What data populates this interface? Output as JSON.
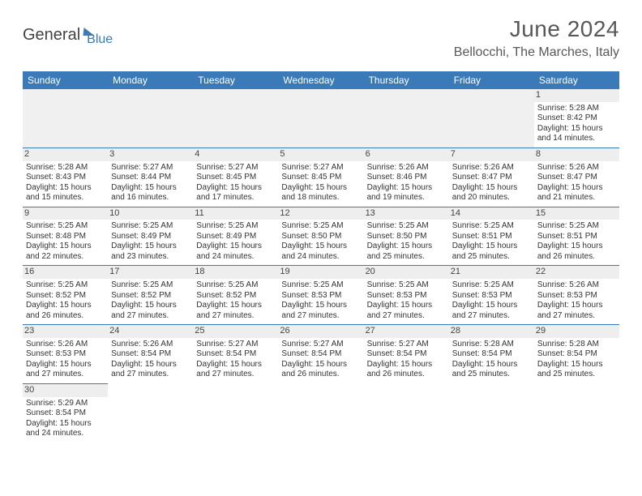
{
  "logo": {
    "part1": "General",
    "part2": "Blue"
  },
  "title": "June 2024",
  "location": "Bellocchi, The Marches, Italy",
  "colors": {
    "header_bg": "#3a7ab8",
    "header_text": "#ffffff",
    "border": "#3a7ab8",
    "title_color": "#585858",
    "daynum_bg": "#eeeeee"
  },
  "day_headers": [
    "Sunday",
    "Monday",
    "Tuesday",
    "Wednesday",
    "Thursday",
    "Friday",
    "Saturday"
  ],
  "weeks": [
    [
      null,
      null,
      null,
      null,
      null,
      null,
      {
        "n": "1",
        "sunrise": "5:28 AM",
        "sunset": "8:42 PM",
        "daylight": "15 hours and 14 minutes."
      }
    ],
    [
      {
        "n": "2",
        "sunrise": "5:28 AM",
        "sunset": "8:43 PM",
        "daylight": "15 hours and 15 minutes."
      },
      {
        "n": "3",
        "sunrise": "5:27 AM",
        "sunset": "8:44 PM",
        "daylight": "15 hours and 16 minutes."
      },
      {
        "n": "4",
        "sunrise": "5:27 AM",
        "sunset": "8:45 PM",
        "daylight": "15 hours and 17 minutes."
      },
      {
        "n": "5",
        "sunrise": "5:27 AM",
        "sunset": "8:45 PM",
        "daylight": "15 hours and 18 minutes."
      },
      {
        "n": "6",
        "sunrise": "5:26 AM",
        "sunset": "8:46 PM",
        "daylight": "15 hours and 19 minutes."
      },
      {
        "n": "7",
        "sunrise": "5:26 AM",
        "sunset": "8:47 PM",
        "daylight": "15 hours and 20 minutes."
      },
      {
        "n": "8",
        "sunrise": "5:26 AM",
        "sunset": "8:47 PM",
        "daylight": "15 hours and 21 minutes."
      }
    ],
    [
      {
        "n": "9",
        "sunrise": "5:25 AM",
        "sunset": "8:48 PM",
        "daylight": "15 hours and 22 minutes."
      },
      {
        "n": "10",
        "sunrise": "5:25 AM",
        "sunset": "8:49 PM",
        "daylight": "15 hours and 23 minutes."
      },
      {
        "n": "11",
        "sunrise": "5:25 AM",
        "sunset": "8:49 PM",
        "daylight": "15 hours and 24 minutes."
      },
      {
        "n": "12",
        "sunrise": "5:25 AM",
        "sunset": "8:50 PM",
        "daylight": "15 hours and 24 minutes."
      },
      {
        "n": "13",
        "sunrise": "5:25 AM",
        "sunset": "8:50 PM",
        "daylight": "15 hours and 25 minutes."
      },
      {
        "n": "14",
        "sunrise": "5:25 AM",
        "sunset": "8:51 PM",
        "daylight": "15 hours and 25 minutes."
      },
      {
        "n": "15",
        "sunrise": "5:25 AM",
        "sunset": "8:51 PM",
        "daylight": "15 hours and 26 minutes."
      }
    ],
    [
      {
        "n": "16",
        "sunrise": "5:25 AM",
        "sunset": "8:52 PM",
        "daylight": "15 hours and 26 minutes."
      },
      {
        "n": "17",
        "sunrise": "5:25 AM",
        "sunset": "8:52 PM",
        "daylight": "15 hours and 27 minutes."
      },
      {
        "n": "18",
        "sunrise": "5:25 AM",
        "sunset": "8:52 PM",
        "daylight": "15 hours and 27 minutes."
      },
      {
        "n": "19",
        "sunrise": "5:25 AM",
        "sunset": "8:53 PM",
        "daylight": "15 hours and 27 minutes."
      },
      {
        "n": "20",
        "sunrise": "5:25 AM",
        "sunset": "8:53 PM",
        "daylight": "15 hours and 27 minutes."
      },
      {
        "n": "21",
        "sunrise": "5:25 AM",
        "sunset": "8:53 PM",
        "daylight": "15 hours and 27 minutes."
      },
      {
        "n": "22",
        "sunrise": "5:26 AM",
        "sunset": "8:53 PM",
        "daylight": "15 hours and 27 minutes."
      }
    ],
    [
      {
        "n": "23",
        "sunrise": "5:26 AM",
        "sunset": "8:53 PM",
        "daylight": "15 hours and 27 minutes."
      },
      {
        "n": "24",
        "sunrise": "5:26 AM",
        "sunset": "8:54 PM",
        "daylight": "15 hours and 27 minutes."
      },
      {
        "n": "25",
        "sunrise": "5:27 AM",
        "sunset": "8:54 PM",
        "daylight": "15 hours and 27 minutes."
      },
      {
        "n": "26",
        "sunrise": "5:27 AM",
        "sunset": "8:54 PM",
        "daylight": "15 hours and 26 minutes."
      },
      {
        "n": "27",
        "sunrise": "5:27 AM",
        "sunset": "8:54 PM",
        "daylight": "15 hours and 26 minutes."
      },
      {
        "n": "28",
        "sunrise": "5:28 AM",
        "sunset": "8:54 PM",
        "daylight": "15 hours and 25 minutes."
      },
      {
        "n": "29",
        "sunrise": "5:28 AM",
        "sunset": "8:54 PM",
        "daylight": "15 hours and 25 minutes."
      }
    ],
    [
      {
        "n": "30",
        "sunrise": "5:29 AM",
        "sunset": "8:54 PM",
        "daylight": "15 hours and 24 minutes."
      },
      null,
      null,
      null,
      null,
      null,
      null
    ]
  ],
  "labels": {
    "sunrise": "Sunrise:",
    "sunset": "Sunset:",
    "daylight": "Daylight:"
  }
}
